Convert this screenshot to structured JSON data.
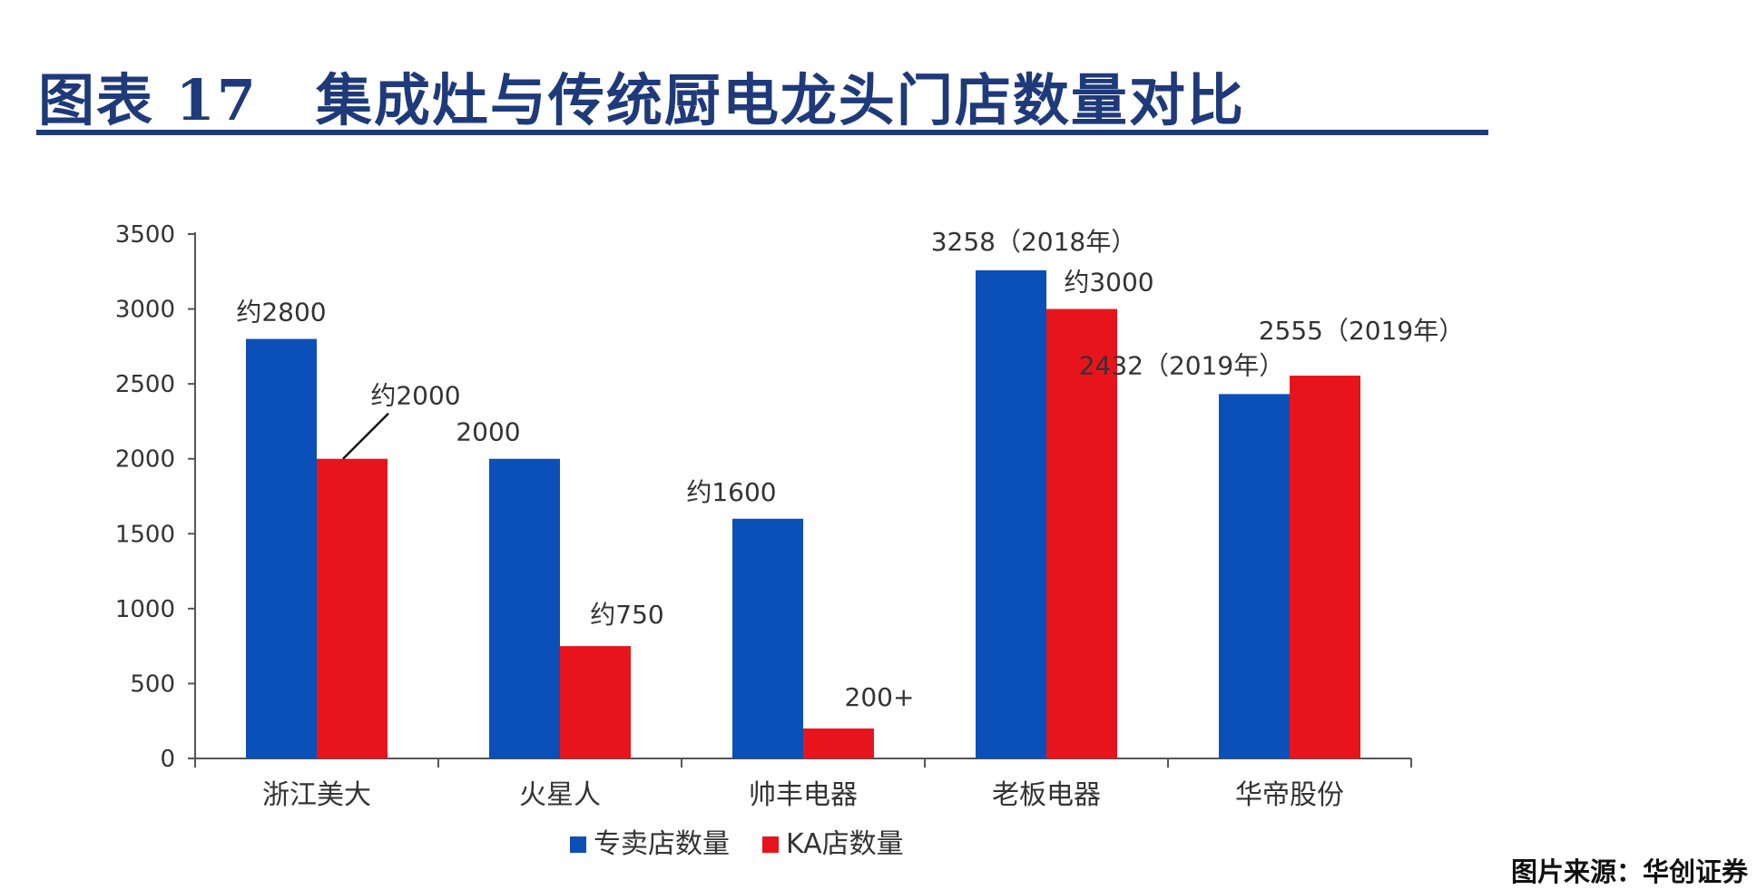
{
  "header": {
    "title": "图表 17　集成灶与传统厨电龙头门店数量对比"
  },
  "footer": {
    "source": "图片来源：华创证券"
  },
  "colors": {
    "title": "#1f3a7a",
    "series_1": "#0b4fb8",
    "series_2": "#e8141c"
  },
  "chart_data": {
    "type": "bar",
    "categories": [
      "浙江美大",
      "火星人",
      "帅丰电器",
      "老板电器",
      "华帝股份"
    ],
    "series": [
      {
        "name": "专卖店数量",
        "values": [
          2800,
          2000,
          1600,
          3258,
          2432
        ],
        "labels": [
          "约2800",
          "2000",
          "约1600",
          "3258（2018年）",
          "2432（2019年）"
        ]
      },
      {
        "name": "KA店数量",
        "values": [
          2000,
          750,
          200,
          3000,
          2555
        ],
        "labels": [
          "约2000",
          "约750",
          "200+",
          "约3000",
          "2555（2019年）"
        ]
      }
    ],
    "ylim": [
      0,
      3500
    ],
    "yticks": [
      0,
      500,
      1000,
      1500,
      2000,
      2500,
      3000,
      3500
    ],
    "legend": "bottom-center",
    "grid": false
  }
}
